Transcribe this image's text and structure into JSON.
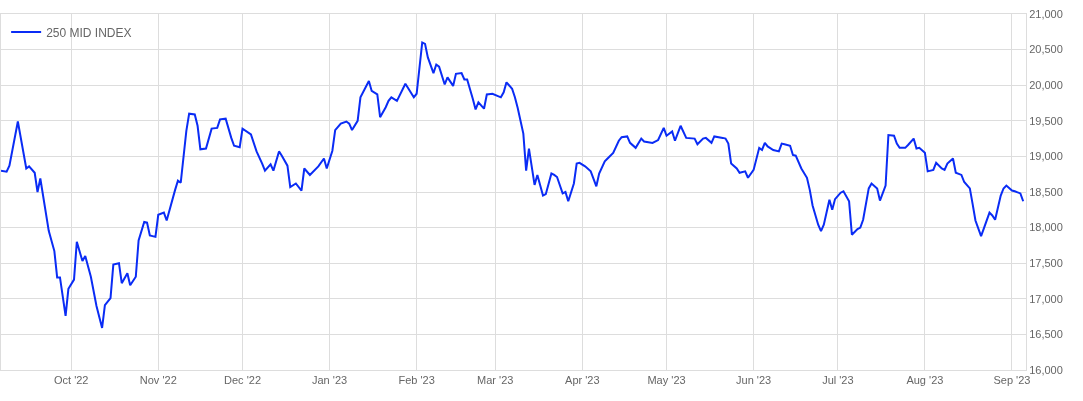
{
  "chart_data": {
    "type": "line",
    "x": [
      "2022-09-06",
      "2022-09-08",
      "2022-09-09",
      "2022-09-12",
      "2022-09-15",
      "2022-09-16",
      "2022-09-18",
      "2022-09-19",
      "2022-09-20",
      "2022-09-23",
      "2022-09-25",
      "2022-09-26",
      "2022-09-27",
      "2022-09-29",
      "2022-09-30",
      "2022-10-02",
      "2022-10-03",
      "2022-10-05",
      "2022-10-06",
      "2022-10-08",
      "2022-10-10",
      "2022-10-12",
      "2022-10-13",
      "2022-10-15",
      "2022-10-16",
      "2022-10-18",
      "2022-10-19",
      "2022-10-21",
      "2022-10-22",
      "2022-10-24",
      "2022-10-25",
      "2022-10-27",
      "2022-10-28",
      "2022-10-29",
      "2022-10-31",
      "2022-11-01",
      "2022-11-03",
      "2022-11-04",
      "2022-11-07",
      "2022-11-08",
      "2022-11-09",
      "2022-11-11",
      "2022-11-12",
      "2022-11-14",
      "2022-11-15",
      "2022-11-16",
      "2022-11-18",
      "2022-11-20",
      "2022-11-22",
      "2022-11-23",
      "2022-11-25",
      "2022-11-27",
      "2022-11-28",
      "2022-11-30",
      "2022-12-01",
      "2022-12-04",
      "2022-12-06",
      "2022-12-08",
      "2022-12-09",
      "2022-12-11",
      "2022-12-12",
      "2022-12-14",
      "2022-12-15",
      "2022-12-17",
      "2022-12-18",
      "2022-12-20",
      "2022-12-22",
      "2022-12-23",
      "2022-12-25",
      "2022-12-28",
      "2022-12-30",
      "2022-12-31",
      "2023-01-02",
      "2023-01-03",
      "2023-01-05",
      "2023-01-07",
      "2023-01-08",
      "2023-01-09",
      "2023-01-11",
      "2023-01-12",
      "2023-01-15",
      "2023-01-16",
      "2023-01-18",
      "2023-01-19",
      "2023-01-21",
      "2023-01-22",
      "2023-01-23",
      "2023-01-25",
      "2023-01-28",
      "2023-01-31",
      "2023-02-01",
      "2023-02-03",
      "2023-02-04",
      "2023-02-05",
      "2023-02-07",
      "2023-02-08",
      "2023-02-09",
      "2023-02-11",
      "2023-02-12",
      "2023-02-14",
      "2023-02-15",
      "2023-02-17",
      "2023-02-18",
      "2023-02-19",
      "2023-02-21",
      "2023-02-22",
      "2023-02-23",
      "2023-02-25",
      "2023-02-26",
      "2023-02-28",
      "2023-03-03",
      "2023-03-04",
      "2023-03-05",
      "2023-03-07",
      "2023-03-08",
      "2023-03-09",
      "2023-03-11",
      "2023-03-12",
      "2023-03-13",
      "2023-03-15",
      "2023-03-16",
      "2023-03-18",
      "2023-03-19",
      "2023-03-21",
      "2023-03-22",
      "2023-03-23",
      "2023-03-25",
      "2023-03-26",
      "2023-03-27",
      "2023-03-29",
      "2023-03-30",
      "2023-03-31",
      "2023-04-02",
      "2023-04-04",
      "2023-04-06",
      "2023-04-07",
      "2023-04-09",
      "2023-04-10",
      "2023-04-12",
      "2023-04-14",
      "2023-04-15",
      "2023-04-17",
      "2023-04-18",
      "2023-04-20",
      "2023-04-22",
      "2023-04-23",
      "2023-04-26",
      "2023-04-28",
      "2023-04-30",
      "2023-05-01",
      "2023-05-03",
      "2023-05-04",
      "2023-05-06",
      "2023-05-08",
      "2023-05-11",
      "2023-05-12",
      "2023-05-14",
      "2023-05-15",
      "2023-05-17",
      "2023-05-18",
      "2023-05-21",
      "2023-05-22",
      "2023-05-23",
      "2023-05-24",
      "2023-05-26",
      "2023-05-27",
      "2023-05-29",
      "2023-05-30",
      "2023-06-01",
      "2023-06-03",
      "2023-06-04",
      "2023-06-05",
      "2023-06-06",
      "2023-06-08",
      "2023-06-10",
      "2023-06-11",
      "2023-06-12",
      "2023-06-14",
      "2023-06-15",
      "2023-06-16",
      "2023-06-18",
      "2023-06-20",
      "2023-06-21",
      "2023-06-22",
      "2023-06-24",
      "2023-06-25",
      "2023-06-26",
      "2023-06-28",
      "2023-06-29",
      "2023-06-30",
      "2023-07-02",
      "2023-07-03",
      "2023-07-05",
      "2023-07-06",
      "2023-07-08",
      "2023-07-09",
      "2023-07-10",
      "2023-07-12",
      "2023-07-13",
      "2023-07-15",
      "2023-07-16",
      "2023-07-18",
      "2023-07-19",
      "2023-07-21",
      "2023-07-22",
      "2023-07-23",
      "2023-07-25",
      "2023-07-26",
      "2023-07-28",
      "2023-07-29",
      "2023-07-30",
      "2023-08-01",
      "2023-08-02",
      "2023-08-04",
      "2023-08-05",
      "2023-08-07",
      "2023-08-08",
      "2023-08-09",
      "2023-08-11",
      "2023-08-12",
      "2023-08-14",
      "2023-08-15",
      "2023-08-17",
      "2023-08-18",
      "2023-08-19",
      "2023-08-21",
      "2023-08-22",
      "2023-08-24",
      "2023-08-25",
      "2023-08-26",
      "2023-08-28",
      "2023-08-29",
      "2023-08-30",
      "2023-09-01",
      "2023-09-02",
      "2023-09-04",
      "2023-09-05"
    ],
    "series": [
      {
        "name": "250 MID INDEX",
        "color": "#0a2cf5",
        "values": [
          18800,
          18785,
          18870,
          19490,
          18830,
          18860,
          18770,
          18500,
          18690,
          17955,
          17670,
          17300,
          17300,
          16760,
          17140,
          17270,
          17800,
          17530,
          17600,
          17310,
          16900,
          16590,
          16910,
          17010,
          17480,
          17500,
          17220,
          17360,
          17190,
          17310,
          17820,
          18080,
          18070,
          17890,
          17870,
          18180,
          18210,
          18100,
          18530,
          18660,
          18630,
          19360,
          19600,
          19590,
          19430,
          19100,
          19110,
          19390,
          19400,
          19520,
          19530,
          19260,
          19150,
          19130,
          19390,
          19310,
          19070,
          18900,
          18800,
          18890,
          18800,
          19070,
          19010,
          18870,
          18570,
          18620,
          18520,
          18830,
          18740,
          18860,
          18970,
          18830,
          19080,
          19370,
          19460,
          19490,
          19460,
          19370,
          19500,
          19830,
          20060,
          19920,
          19870,
          19550,
          19690,
          19780,
          19830,
          19780,
          20020,
          19830,
          19880,
          20600,
          20580,
          20390,
          20170,
          20290,
          20260,
          20010,
          20110,
          19990,
          20160,
          20170,
          20080,
          20080,
          19810,
          19660,
          19760,
          19670,
          19870,
          19880,
          19830,
          19900,
          20040,
          19950,
          19830,
          19680,
          19320,
          18800,
          19110,
          18600,
          18740,
          18450,
          18470,
          18760,
          18740,
          18710,
          18480,
          18500,
          18370,
          18620,
          18900,
          18910,
          18860,
          18790,
          18580,
          18760,
          18930,
          18970,
          19050,
          19220,
          19270,
          19280,
          19190,
          19120,
          19250,
          19210,
          19190,
          19230,
          19400,
          19290,
          19350,
          19220,
          19430,
          19260,
          19250,
          19170,
          19250,
          19260,
          19190,
          19280,
          19260,
          19250,
          19180,
          18900,
          18830,
          18770,
          18790,
          18700,
          18810,
          19120,
          19090,
          19190,
          19140,
          19090,
          19070,
          19180,
          19170,
          19150,
          19020,
          19010,
          18830,
          18700,
          18530,
          18310,
          18040,
          17950,
          18040,
          18390,
          18250,
          18400,
          18490,
          18510,
          18370,
          17900,
          17980,
          18000,
          18110,
          18550,
          18620,
          18550,
          18380,
          18590,
          19300,
          19290,
          19180,
          19120,
          19120,
          19160,
          19250,
          19110,
          19120,
          19050,
          18790,
          18810,
          18910,
          18830,
          18810,
          18900,
          18970,
          18770,
          18740,
          18640,
          18550,
          18330,
          18100,
          17880,
          17990,
          18210,
          18170,
          18110,
          18450,
          18550,
          18590,
          18520,
          18510,
          18480,
          18370
        ]
      }
    ],
    "xlim": [
      "2022-09-06",
      "2023-09-06"
    ],
    "xticks": [
      {
        "value": "2022-10-01",
        "label": "Oct '22"
      },
      {
        "value": "2022-11-01",
        "label": "Nov '22"
      },
      {
        "value": "2022-12-01",
        "label": "Dec '22"
      },
      {
        "value": "2023-01-01",
        "label": "Jan '23"
      },
      {
        "value": "2023-02-01",
        "label": "Feb '23"
      },
      {
        "value": "2023-03-01",
        "label": "Mar '23"
      },
      {
        "value": "2023-04-01",
        "label": "Apr '23"
      },
      {
        "value": "2023-05-01",
        "label": "May '23"
      },
      {
        "value": "2023-06-01",
        "label": "Jun '23"
      },
      {
        "value": "2023-07-01",
        "label": "Jul '23"
      },
      {
        "value": "2023-08-01",
        "label": "Aug '23"
      },
      {
        "value": "2023-09-01",
        "label": "Sep '23"
      }
    ],
    "ylim": [
      16000,
      21000
    ],
    "yticks": [
      {
        "value": 16000,
        "label": "16,000"
      },
      {
        "value": 16500,
        "label": "16,500"
      },
      {
        "value": 17000,
        "label": "17,000"
      },
      {
        "value": 17500,
        "label": "17,500"
      },
      {
        "value": 18000,
        "label": "18,000"
      },
      {
        "value": 18500,
        "label": "18,500"
      },
      {
        "value": 19000,
        "label": "19,000"
      },
      {
        "value": 19500,
        "label": "19,500"
      },
      {
        "value": 20000,
        "label": "20,000"
      },
      {
        "value": 20500,
        "label": "20,500"
      },
      {
        "value": 21000,
        "label": "21,000"
      }
    ],
    "grid": true,
    "legend": "top left",
    "line_style": "solid",
    "marker": "none"
  }
}
